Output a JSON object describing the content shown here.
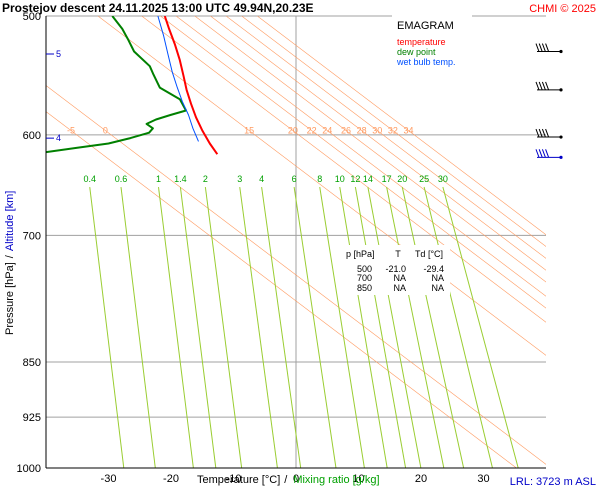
{
  "header": {
    "title": "Prostejov   descent   24.11.2025 13:00 UTC  49.94N,20.23E",
    "credit": "CHMI © 2025"
  },
  "legend": {
    "heading": "EMAGRAM",
    "items": [
      {
        "label": "temperature",
        "color": "#ff0000"
      },
      {
        "label": "dew point",
        "color": "#008000"
      },
      {
        "label": "wet bulb temp.",
        "color": "#0050ff"
      }
    ]
  },
  "table": {
    "headers": [
      "p [hPa]",
      "T",
      "Td [°C]"
    ],
    "rows": [
      [
        "500",
        "-21.0",
        "-29.4"
      ],
      [
        "700",
        "NA",
        "NA"
      ],
      [
        "850",
        "NA",
        "NA"
      ]
    ]
  },
  "axes": {
    "y_label_pressure": "Pressure [hPa]",
    "y_label_sep": "/",
    "y_label_altitude": "Altitude [km]",
    "x_label_temp": "Temperature [°C]",
    "x_label_sep": "/",
    "x_label_mix": "Mixing ratio [g/kg]"
  },
  "footer": {
    "lrl": "LRL: 3723 m ASL"
  },
  "colors": {
    "temperature": "#ff0000",
    "dew_point": "#008000",
    "wet_bulb": "#0050ff",
    "mixing_ratio": "#9acd32",
    "dry_adiabat": "#ff9a60",
    "grid": "#a0a0a0",
    "wind_barb": "#000000",
    "wind_barb_highlight": "#0000c8",
    "altitude": "#0000c8"
  },
  "chart_data": {
    "type": "line",
    "x_axis": {
      "label": "Temperature [°C]",
      "range": [
        -40,
        40
      ],
      "ticks": [
        -30,
        -20,
        -10,
        0,
        10,
        20,
        30
      ]
    },
    "y_axis": {
      "label": "Pressure [hPa]",
      "scale": "log",
      "range": [
        1000,
        500
      ],
      "ticks": [
        500,
        600,
        700,
        850,
        925,
        1000
      ]
    },
    "altitude_labels": [
      {
        "km": "5",
        "pressure": 530
      },
      {
        "km": "4",
        "pressure": 603
      }
    ],
    "mixing_ratio_lines": [
      {
        "label": "0.4",
        "value": 0.4,
        "temp_at_label": -33
      },
      {
        "label": "0.6",
        "value": 0.6,
        "temp_at_label": -28
      },
      {
        "label": "1",
        "value": 1,
        "temp_at_label": -22
      },
      {
        "label": "1.4",
        "value": 1.4,
        "temp_at_label": -18.5
      },
      {
        "label": "2",
        "value": 2,
        "temp_at_label": -14.5
      },
      {
        "label": "3",
        "value": 3,
        "temp_at_label": -9
      },
      {
        "label": "4",
        "value": 4,
        "temp_at_label": -5.5
      },
      {
        "label": "6",
        "value": 6,
        "temp_at_label": -0.3
      },
      {
        "label": "8",
        "value": 8,
        "temp_at_label": 3.8
      },
      {
        "label": "10",
        "value": 10,
        "temp_at_label": 7
      },
      {
        "label": "12",
        "value": 12,
        "temp_at_label": 9.5
      },
      {
        "label": "14",
        "value": 14,
        "temp_at_label": 11.5
      },
      {
        "label": "17",
        "value": 17,
        "temp_at_label": 14.5
      },
      {
        "label": "20",
        "value": 20,
        "temp_at_label": 17
      },
      {
        "label": "25",
        "value": 25,
        "temp_at_label": 20.5
      },
      {
        "label": "30",
        "value": 30,
        "temp_at_label": 23.5
      }
    ],
    "dry_adiabats": [
      {
        "label": "-5",
        "value": -5,
        "temp_at_label": -36
      },
      {
        "label": "0",
        "value": 0,
        "temp_at_label": -30.5
      },
      {
        "label": "15",
        "value": 15,
        "temp_at_label": -7.5
      },
      {
        "label": "20",
        "value": 20,
        "temp_at_label": -0.5
      },
      {
        "label": "22",
        "value": 22,
        "temp_at_label": 2.5
      },
      {
        "label": "24",
        "value": 24,
        "temp_at_label": 5
      },
      {
        "label": "26",
        "value": 26,
        "temp_at_label": 8
      },
      {
        "label": "28",
        "value": 28,
        "temp_at_label": 10.5
      },
      {
        "label": "30",
        "value": 30,
        "temp_at_label": 13
      },
      {
        "label": "32",
        "value": 32,
        "temp_at_label": 15.5
      },
      {
        "label": "34",
        "value": 34,
        "temp_at_label": 18
      }
    ],
    "series": [
      {
        "name": "temperature",
        "color": "#ff0000",
        "points": [
          {
            "p": 500,
            "t": -21.0
          },
          {
            "p": 510,
            "t": -20.3
          },
          {
            "p": 522,
            "t": -19.4
          },
          {
            "p": 535,
            "t": -18.6
          },
          {
            "p": 548,
            "t": -18.0
          },
          {
            "p": 560,
            "t": -17.5
          },
          {
            "p": 572,
            "t": -16.8
          },
          {
            "p": 584,
            "t": -16.0
          },
          {
            "p": 596,
            "t": -15.0
          },
          {
            "p": 608,
            "t": -13.8
          },
          {
            "p": 618,
            "t": -12.6
          }
        ]
      },
      {
        "name": "dew point",
        "color": "#008000",
        "points": [
          {
            "p": 500,
            "t": -29.4
          },
          {
            "p": 510,
            "t": -27.8
          },
          {
            "p": 518,
            "t": -26.9
          },
          {
            "p": 528,
            "t": -25.9
          },
          {
            "p": 540,
            "t": -23.4
          },
          {
            "p": 547,
            "t": -22.8
          },
          {
            "p": 558,
            "t": -21.8
          },
          {
            "p": 568,
            "t": -18.6
          },
          {
            "p": 578,
            "t": -17.6
          },
          {
            "p": 582,
            "t": -20.1
          },
          {
            "p": 586,
            "t": -22.4
          },
          {
            "p": 590,
            "t": -23.9
          },
          {
            "p": 594,
            "t": -22.9
          },
          {
            "p": 598,
            "t": -23.5
          },
          {
            "p": 603,
            "t": -26.5
          },
          {
            "p": 608,
            "t": -30.0
          },
          {
            "p": 612,
            "t": -35.0
          },
          {
            "p": 616,
            "t": -40.0
          }
        ]
      },
      {
        "name": "wet bulb temp.",
        "color": "#0050ff",
        "points": [
          {
            "p": 500,
            "t": -22.1
          },
          {
            "p": 515,
            "t": -21.2
          },
          {
            "p": 530,
            "t": -20.5
          },
          {
            "p": 545,
            "t": -19.8
          },
          {
            "p": 558,
            "t": -19.0
          },
          {
            "p": 570,
            "t": -18.2
          },
          {
            "p": 582,
            "t": -17.2
          },
          {
            "p": 594,
            "t": -16.5
          },
          {
            "p": 606,
            "t": -15.6
          }
        ]
      }
    ],
    "wind_barbs": [
      {
        "p": 528,
        "highlight": false
      },
      {
        "p": 560,
        "highlight": false
      },
      {
        "p": 602,
        "highlight": false
      },
      {
        "p": 621,
        "highlight": true
      }
    ],
    "grid": true,
    "legend_position": "top-right"
  }
}
